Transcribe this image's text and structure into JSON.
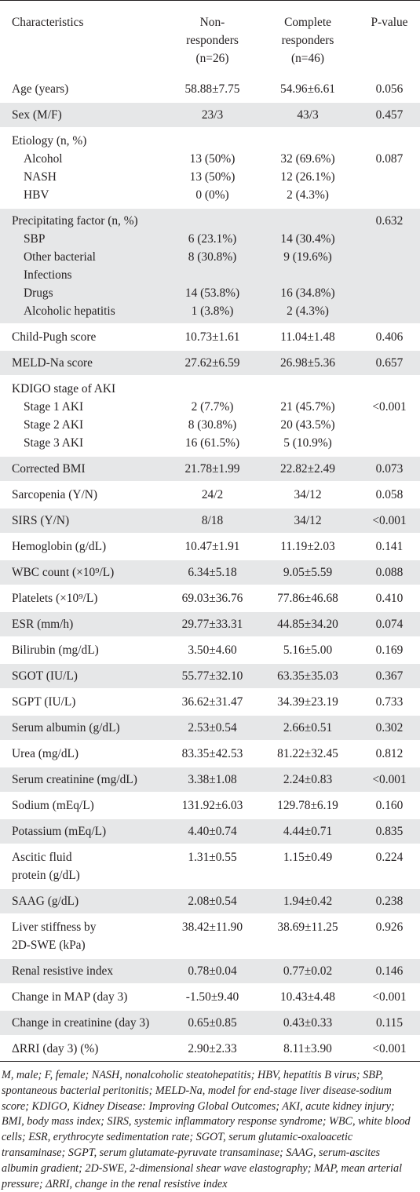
{
  "table": {
    "headers": {
      "col1": "Characteristics",
      "col2": [
        "Non-",
        "responders",
        "(n=26)"
      ],
      "col3": [
        "Complete",
        "responders",
        "(n=46)"
      ],
      "col4": "P-value"
    },
    "rows": [
      {
        "label": [
          "Age (years)"
        ],
        "non": [
          "58.88±7.75"
        ],
        "comp": [
          "54.96±6.61"
        ],
        "p": [
          "0.056"
        ],
        "shade": false
      },
      {
        "label": [
          "Sex (M/F)"
        ],
        "non": [
          "23/3"
        ],
        "comp": [
          "43/3"
        ],
        "p": [
          "0.457"
        ],
        "shade": true
      },
      {
        "label": [
          "Etiology (n, %)",
          "Alcohol",
          "NASH",
          "HBV"
        ],
        "non": [
          "",
          "13 (50%)",
          "13 (50%)",
          "0 (0%)"
        ],
        "comp": [
          "",
          "32 (69.6%)",
          "12 (26.1%)",
          "2 (4.3%)"
        ],
        "p": [
          "",
          "0.087"
        ],
        "shade": false,
        "indent": true
      },
      {
        "label": [
          "Precipitating factor (n, %)",
          "SBP",
          "Other bacterial",
          "Infections",
          "Drugs",
          "Alcoholic hepatitis"
        ],
        "non": [
          "",
          "6 (23.1%)",
          "8 (30.8%)",
          "",
          "14 (53.8%)",
          "1 (3.8%)"
        ],
        "comp": [
          "",
          "14 (30.4%)",
          "9 (19.6%)",
          "",
          "16 (34.8%)",
          "2 (4.3%)"
        ],
        "p": [
          "0.632"
        ],
        "shade": true,
        "indent": true
      },
      {
        "label": [
          "Child-Pugh score"
        ],
        "non": [
          "10.73±1.61"
        ],
        "comp": [
          "11.04±1.48"
        ],
        "p": [
          "0.406"
        ],
        "shade": false
      },
      {
        "label": [
          "MELD-Na score"
        ],
        "non": [
          "27.62±6.59"
        ],
        "comp": [
          "26.98±5.36"
        ],
        "p": [
          "0.657"
        ],
        "shade": true
      },
      {
        "label": [
          "KDIGO stage of AKI",
          "Stage 1 AKI",
          "Stage 2 AKI",
          "Stage 3 AKI"
        ],
        "non": [
          "",
          "2 (7.7%)",
          "8 (30.8%)",
          "16 (61.5%)"
        ],
        "comp": [
          "",
          "21 (45.7%)",
          "20 (43.5%)",
          "5 (10.9%)"
        ],
        "p": [
          "",
          "<0.001"
        ],
        "shade": false,
        "indent": true
      },
      {
        "label": [
          "Corrected BMI"
        ],
        "non": [
          "21.78±1.99"
        ],
        "comp": [
          "22.82±2.49"
        ],
        "p": [
          "0.073"
        ],
        "shade": true
      },
      {
        "label": [
          "Sarcopenia (Y/N)"
        ],
        "non": [
          "24/2"
        ],
        "comp": [
          "34/12"
        ],
        "p": [
          "0.058"
        ],
        "shade": false
      },
      {
        "label": [
          "SIRS (Y/N)"
        ],
        "non": [
          "8/18"
        ],
        "comp": [
          "34/12"
        ],
        "p": [
          "<0.001"
        ],
        "shade": true
      },
      {
        "label": [
          "Hemoglobin (g/dL)"
        ],
        "non": [
          "10.47±1.91"
        ],
        "comp": [
          "11.19±2.03"
        ],
        "p": [
          "0.141"
        ],
        "shade": false
      },
      {
        "label": [
          "WBC count (×10⁹/L)"
        ],
        "non": [
          "6.34±5.18"
        ],
        "comp": [
          "9.05±5.59"
        ],
        "p": [
          "0.088"
        ],
        "shade": true
      },
      {
        "label": [
          "Platelets (×10⁹/L)"
        ],
        "non": [
          "69.03±36.76"
        ],
        "comp": [
          "77.86±46.68"
        ],
        "p": [
          "0.410"
        ],
        "shade": false
      },
      {
        "label": [
          "ESR (mm/h)"
        ],
        "non": [
          "29.77±33.31"
        ],
        "comp": [
          "44.85±34.20"
        ],
        "p": [
          "0.074"
        ],
        "shade": true
      },
      {
        "label": [
          "Bilirubin (mg/dL)"
        ],
        "non": [
          "3.50±4.60"
        ],
        "comp": [
          "5.16±5.00"
        ],
        "p": [
          "0.169"
        ],
        "shade": false
      },
      {
        "label": [
          "SGOT (IU/L)"
        ],
        "non": [
          "55.77±32.10"
        ],
        "comp": [
          "63.35±35.03"
        ],
        "p": [
          "0.367"
        ],
        "shade": true
      },
      {
        "label": [
          "SGPT (IU/L)"
        ],
        "non": [
          "36.62±31.47"
        ],
        "comp": [
          "34.39±23.19"
        ],
        "p": [
          "0.733"
        ],
        "shade": false
      },
      {
        "label": [
          "Serum albumin (g/dL)"
        ],
        "non": [
          "2.53±0.54"
        ],
        "comp": [
          "2.66±0.51"
        ],
        "p": [
          "0.302"
        ],
        "shade": true
      },
      {
        "label": [
          "Urea (mg/dL)"
        ],
        "non": [
          "83.35±42.53"
        ],
        "comp": [
          "81.22±32.45"
        ],
        "p": [
          "0.812"
        ],
        "shade": false
      },
      {
        "label": [
          "Serum creatinine (mg/dL)"
        ],
        "non": [
          "3.38±1.08"
        ],
        "comp": [
          "2.24±0.83"
        ],
        "p": [
          "<0.001"
        ],
        "shade": true
      },
      {
        "label": [
          "Sodium (mEq/L)"
        ],
        "non": [
          "131.92±6.03"
        ],
        "comp": [
          "129.78±6.19"
        ],
        "p": [
          "0.160"
        ],
        "shade": false
      },
      {
        "label": [
          "Potassium (mEq/L)"
        ],
        "non": [
          "4.40±0.74"
        ],
        "comp": [
          "4.44±0.71"
        ],
        "p": [
          "0.835"
        ],
        "shade": true
      },
      {
        "label": [
          "Ascitic fluid",
          "protein (g/dL)"
        ],
        "non": [
          "1.31±0.55"
        ],
        "comp": [
          "1.15±0.49"
        ],
        "p": [
          "0.224"
        ],
        "shade": false
      },
      {
        "label": [
          "SAAG (g/dL)"
        ],
        "non": [
          "2.08±0.54"
        ],
        "comp": [
          "1.94±0.42"
        ],
        "p": [
          "0.238"
        ],
        "shade": true
      },
      {
        "label": [
          "Liver stiffness by",
          "2D-SWE (kPa)"
        ],
        "non": [
          "38.42±11.90"
        ],
        "comp": [
          "38.69±11.25"
        ],
        "p": [
          "0.926"
        ],
        "shade": false
      },
      {
        "label": [
          "Renal resistive index"
        ],
        "non": [
          "0.78±0.04"
        ],
        "comp": [
          "0.77±0.02"
        ],
        "p": [
          "0.146"
        ],
        "shade": true
      },
      {
        "label": [
          "Change in MAP (day 3)"
        ],
        "non": [
          "-1.50±9.40"
        ],
        "comp": [
          "10.43±4.48"
        ],
        "p": [
          "<0.001"
        ],
        "shade": false
      },
      {
        "label": [
          "Change in creatinine (day 3)"
        ],
        "non": [
          "0.65±0.85"
        ],
        "comp": [
          "0.43±0.33"
        ],
        "p": [
          "0.115"
        ],
        "shade": true
      },
      {
        "label": [
          "ΔRRI (day 3) (%)"
        ],
        "non": [
          "2.90±2.33"
        ],
        "comp": [
          "8.11±3.90"
        ],
        "p": [
          "<0.001"
        ],
        "shade": false
      }
    ]
  },
  "footnote": "M, male; F, female; NASH, nonalcoholic steatohepatitis; HBV, hepatitis B virus; SBP, spontaneous bacterial peritonitis; MELD-Na, model for end-stage liver disease-sodium score; KDIGO, Kidney Disease: Improving Global Outcomes; AKI, acute kidney injury; BMI, body mass index; SIRS, systemic inflammatory response syndrome; WBC, white blood cells; ESR, erythrocyte sedimentation rate; SGOT, serum glutamic-oxaloacetic transaminase; SGPT, serum glutamate-pyruvate transaminase; SAAG, serum-ascites albumin gradient; 2D-SWE, 2-dimensional shear wave elastography; MAP, mean arterial pressure; ΔRRI, change in the renal resistive index"
}
